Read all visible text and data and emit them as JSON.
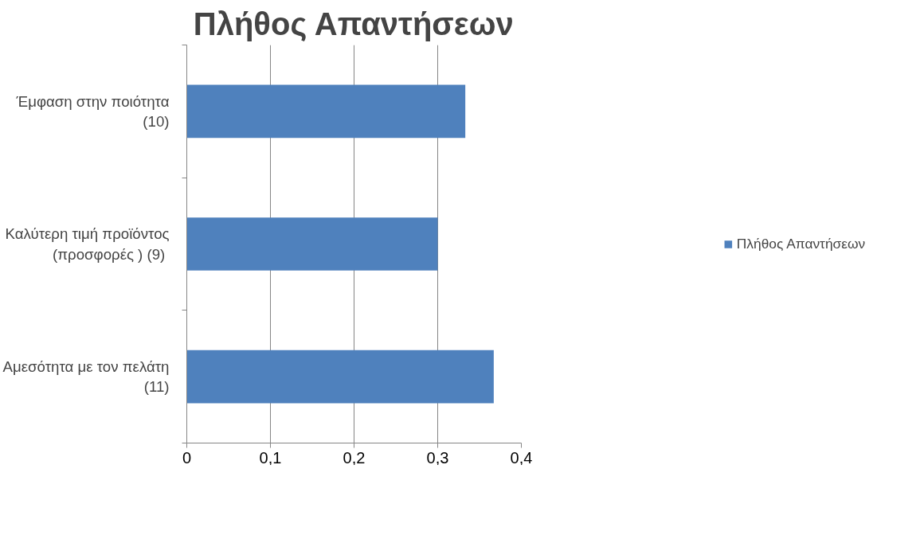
{
  "chart_data": {
    "type": "bar",
    "orientation": "horizontal",
    "title": "Πλήθος Απαντήσεων",
    "categories": [
      "Έμφαση στην ποιότητα (10)",
      "Καλύτερη τιμή προϊόντος (προσφορές )  (9)",
      "Αμεσότητα με τον πελάτη (11)"
    ],
    "series": [
      {
        "name": "Πλήθος Απαντήσεων",
        "color": "#4f81bd",
        "values": [
          0.333,
          0.3,
          0.367
        ]
      }
    ],
    "xlim": [
      0,
      0.4
    ],
    "xticks": [
      {
        "value": 0,
        "label": "0"
      },
      {
        "value": 0.1,
        "label": "0,1"
      },
      {
        "value": 0.2,
        "label": "0,2"
      },
      {
        "value": 0.3,
        "label": "0,3"
      },
      {
        "value": 0.4,
        "label": "0,4"
      }
    ],
    "grid": "x",
    "legend": "right"
  }
}
